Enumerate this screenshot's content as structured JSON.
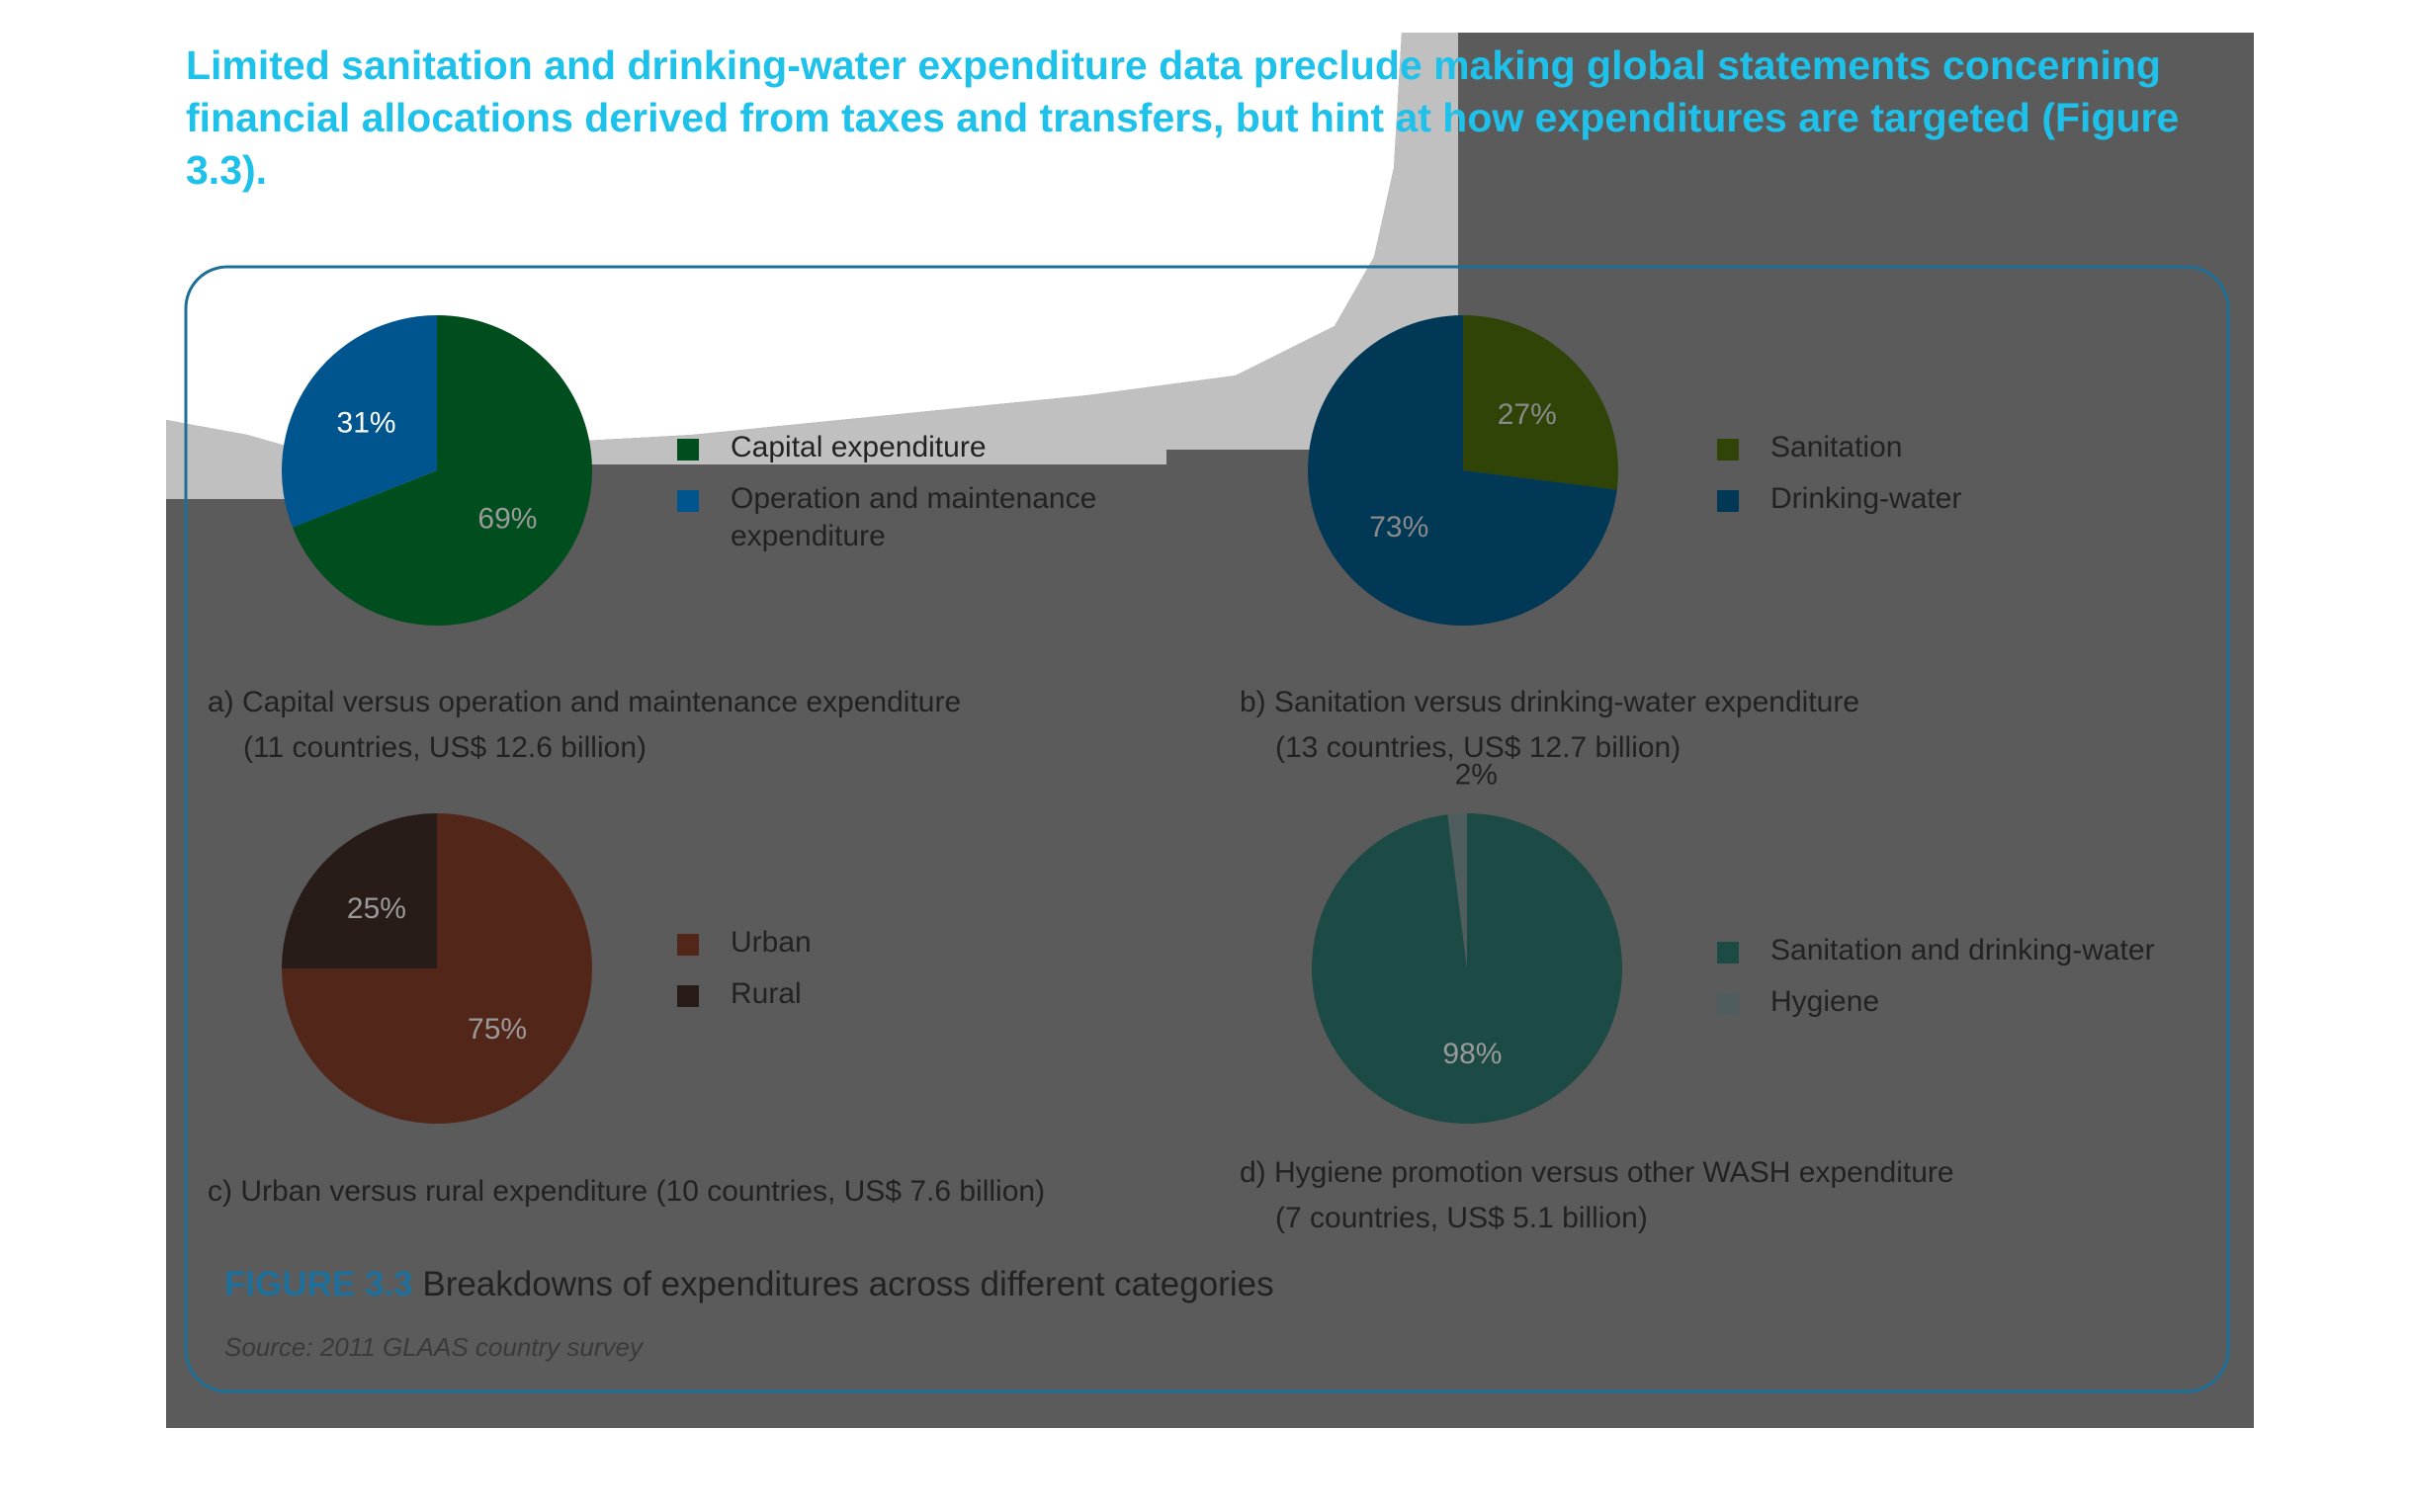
{
  "intro_text": "Limited sanitation and drinking-water expenditure data preclude making global statements concerning financial allocations derived from taxes and transfers, but hint at how expenditures are targeted (Figure 3.3).",
  "figure": {
    "number": "FIGURE 3.3",
    "title": "Breakdowns of expenditures across different categories",
    "source": "Source: 2011 GLAAS country survey"
  },
  "colors": {
    "accent": "#1ec1ea",
    "frame": "#1d6f97",
    "capital": "#004d1e",
    "om": "#00558f",
    "sanitation": "#2f4406",
    "drinking_water": "#003856",
    "urban": "#53261a",
    "rural": "#281c19",
    "wash": "#1c4a44",
    "hygiene": "#4f5d5f"
  },
  "chart_data": [
    {
      "type": "pie",
      "caption_line1": "a) Capital versus operation and maintenance expenditure",
      "caption_line2": "(11 countries, US$ 12.6 billion)",
      "slices": [
        {
          "name": "Capital expenditure",
          "value": 69,
          "label": "69%",
          "color": "#004d1e"
        },
        {
          "name": "Operation and maintenance expenditure",
          "value": 31,
          "label": "31%",
          "color": "#00558f"
        }
      ],
      "legend_line1": [
        "Capital expenditure",
        "Operation and maintenance"
      ],
      "legend_line2": [
        "",
        "expenditure"
      ]
    },
    {
      "type": "pie",
      "caption_line1": "b) Sanitation versus drinking-water expenditure",
      "caption_line2": "(13 countries, US$ 12.7 billion)",
      "slices": [
        {
          "name": "Sanitation",
          "value": 27,
          "label": "27%",
          "color": "#2f4406"
        },
        {
          "name": "Drinking-water",
          "value": 73,
          "label": "73%",
          "color": "#003856"
        }
      ],
      "legend_line1": [
        "Sanitation",
        "Drinking-water"
      ],
      "legend_line2": [
        "",
        ""
      ]
    },
    {
      "type": "pie",
      "caption_line1": "c) Urban versus rural expenditure (10 countries, US$ 7.6 billion)",
      "caption_line2": "",
      "slices": [
        {
          "name": "Urban",
          "value": 75,
          "label": "75%",
          "color": "#53261a"
        },
        {
          "name": "Rural",
          "value": 25,
          "label": "25%",
          "color": "#281c19"
        }
      ],
      "legend_line1": [
        "Urban",
        "Rural"
      ],
      "legend_line2": [
        "",
        ""
      ]
    },
    {
      "type": "pie",
      "caption_line1": "d) Hygiene promotion versus other WASH expenditure",
      "caption_line2": "(7 countries, US$ 5.1 billion)",
      "slices": [
        {
          "name": "Sanitation and drinking-water",
          "value": 98,
          "label": "98%",
          "color": "#1c4a44"
        },
        {
          "name": "Hygiene",
          "value": 2,
          "label": "2%",
          "color": "#4f5d5f"
        }
      ],
      "legend_line1": [
        "Sanitation and drinking-water",
        "Hygiene"
      ],
      "legend_line2": [
        "",
        ""
      ]
    }
  ]
}
